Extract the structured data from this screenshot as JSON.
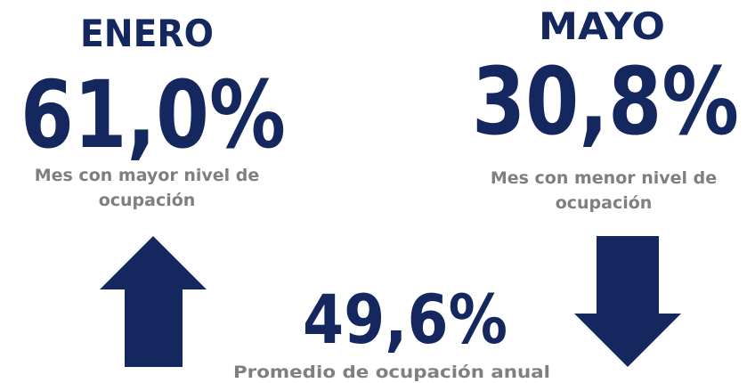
{
  "left": {
    "month": "ENERO",
    "value": "61,0%",
    "caption": [
      "Mes con mayor nivel de",
      "ocupación"
    ]
  },
  "right": {
    "month": "MAYO",
    "value": "30,8%",
    "caption": [
      "Mes con menor nivel de",
      "ocupación"
    ]
  },
  "center": {
    "value": "49,6%",
    "caption": "Promedio de ocupación anual"
  }
}
